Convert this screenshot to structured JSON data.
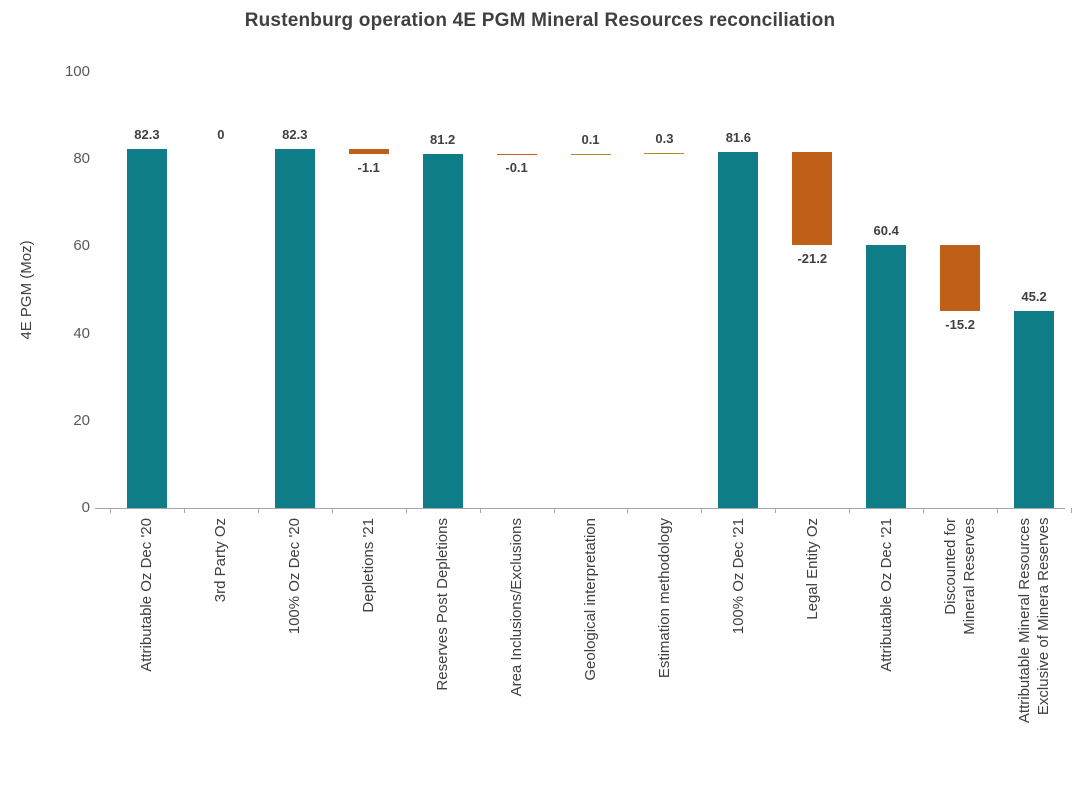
{
  "title": "Rustenburg operation 4E PGM Mineral Resources reconciliation",
  "chart_data": {
    "type": "bar",
    "subtype": "waterfall",
    "title": "Rustenburg operation 4E PGM Mineral Resources reconciliation",
    "xlabel": "",
    "ylabel": "4E PGM (Moz)",
    "ylim": [
      0,
      100
    ],
    "yticks": [
      0,
      20,
      40,
      60,
      80,
      100
    ],
    "grid": false,
    "legend": "none",
    "colors": {
      "total": "#0e7d87",
      "negative": "#c05f18",
      "positive": "#b5862b"
    },
    "items": [
      {
        "label": "Attributable Oz Dec '20",
        "type": "total",
        "value": 82.3,
        "display": "82.3"
      },
      {
        "label": "3rd Party Oz",
        "type": "delta",
        "value": 0,
        "display": "0"
      },
      {
        "label": "100% Oz Dec '20",
        "type": "total",
        "value": 82.3,
        "display": "82.3"
      },
      {
        "label": "Depletions '21",
        "type": "delta",
        "value": -1.1,
        "display": "-1.1"
      },
      {
        "label": "Reserves Post Depletions",
        "type": "total",
        "value": 81.2,
        "display": "81.2"
      },
      {
        "label": "Area Inclusions/Exclusions",
        "type": "delta",
        "value": -0.1,
        "display": "-0.1"
      },
      {
        "label": "Geological interpretation",
        "type": "delta",
        "value": 0.1,
        "display": "0.1"
      },
      {
        "label": "Estimation methodology",
        "type": "delta",
        "value": 0.3,
        "display": "0.3"
      },
      {
        "label": "100% Oz Dec '21",
        "type": "total",
        "value": 81.6,
        "display": "81.6"
      },
      {
        "label": "Legal Entity Oz",
        "type": "delta",
        "value": -21.2,
        "display": "-21.2"
      },
      {
        "label": "Attributable Oz Dec '21",
        "type": "total",
        "value": 60.4,
        "display": "60.4"
      },
      {
        "label": "Discounted for\nMineral Reserves",
        "type": "delta",
        "value": -15.2,
        "display": "-15.2"
      },
      {
        "label": "Attributable Mineral Resources\nExclusive of Minera Reserves",
        "type": "total",
        "value": 45.2,
        "display": "45.2"
      }
    ]
  }
}
